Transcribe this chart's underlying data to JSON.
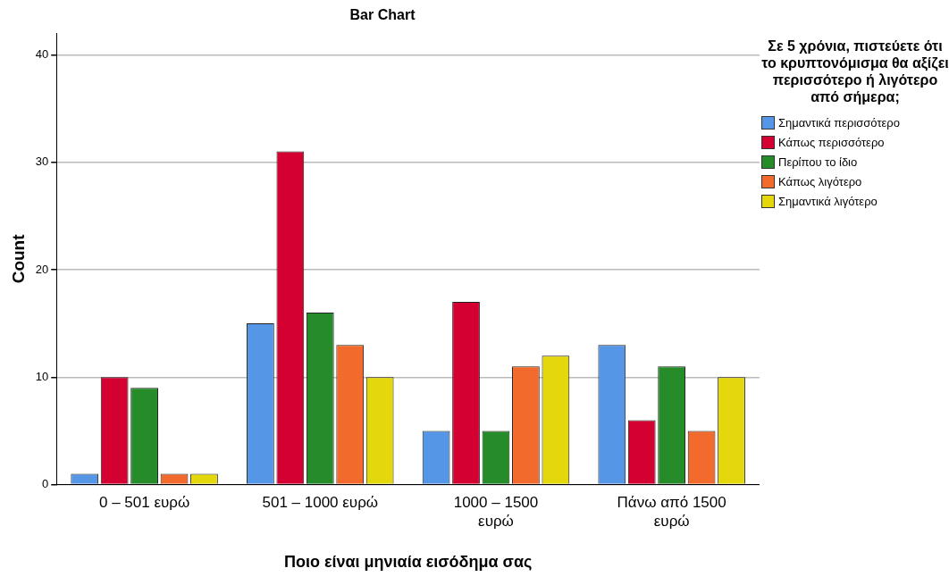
{
  "chart_data": {
    "type": "bar",
    "title": "Bar Chart",
    "xlabel": "Ποιο είναι μηνιαία εισόδημα σας",
    "ylabel": "Count",
    "legend_title": "Σε 5 χρόνια, πιστεύετε ότι το κρυπτονόμισμα θα αξίζει περισσότερο ή λιγότερο από σήμερα;",
    "categories": [
      "0 – 501 ευρώ",
      "501 – 1000 ευρώ",
      "1000 – 1500 ευρώ",
      "Πάνω από 1500 ευρώ"
    ],
    "series": [
      {
        "name": "Σημαντικά περισσότερο",
        "color": "#5596e6",
        "values": [
          1,
          15,
          5,
          13
        ]
      },
      {
        "name": "Κάπως περισσότερο",
        "color": "#d50032",
        "values": [
          10,
          31,
          17,
          6
        ]
      },
      {
        "name": "Περίπου το ίδιο",
        "color": "#268c29",
        "values": [
          9,
          16,
          5,
          11
        ]
      },
      {
        "name": "Κάπως λιγότερο",
        "color": "#f26b2c",
        "values": [
          1,
          13,
          11,
          5
        ]
      },
      {
        "name": "Σημαντικά λιγότερο",
        "color": "#e4d80c",
        "values": [
          1,
          10,
          12,
          10
        ]
      }
    ],
    "ylim": [
      0,
      42
    ],
    "yticks": [
      0,
      10,
      20,
      30,
      40
    ],
    "grid": "y",
    "legend": "right"
  }
}
